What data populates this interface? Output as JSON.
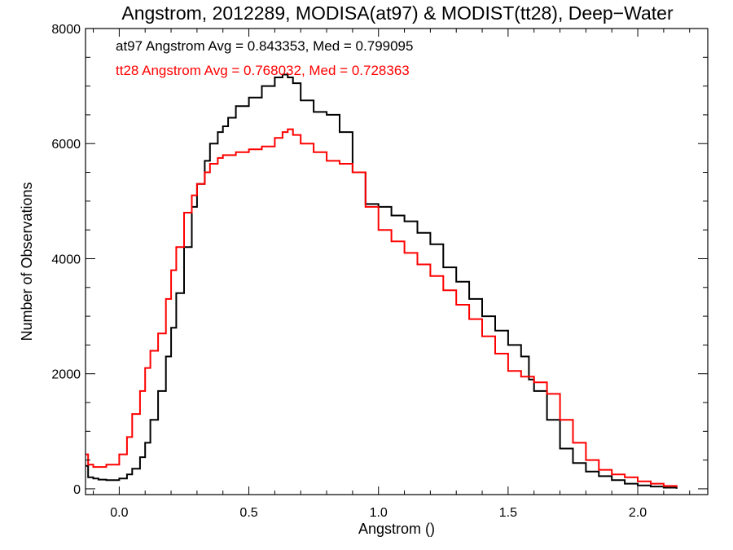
{
  "chart_data": {
    "type": "line",
    "title": "Angstrom, 2012289, MODISA(at97) & MODIST(tt28), Deep−Water",
    "xlabel": "Angstrom ()",
    "ylabel": "Number of Observations",
    "xlim": [
      -0.13,
      2.27
    ],
    "ylim": [
      -100,
      8000
    ],
    "xticks": [
      "0.0",
      "0.5",
      "1.0",
      "1.5",
      "2.0"
    ],
    "yticks": [
      "0",
      "2000",
      "4000",
      "6000",
      "8000"
    ],
    "grid": false,
    "legend": "top-left",
    "annotations": [
      {
        "text": "at97 Angstrom Avg = 0.843353, Med = 0.799095",
        "color": "#000000"
      },
      {
        "text": "tt28 Angstrom Avg = 0.768032, Med = 0.728363",
        "color": "#ff0000"
      }
    ],
    "series": [
      {
        "color": "#000000",
        "x": [
          -0.13,
          -0.12,
          -0.1,
          -0.08,
          -0.05,
          0.0,
          0.03,
          0.05,
          0.08,
          0.1,
          0.12,
          0.15,
          0.18,
          0.2,
          0.22,
          0.25,
          0.28,
          0.3,
          0.33,
          0.35,
          0.38,
          0.4,
          0.42,
          0.45,
          0.5,
          0.55,
          0.6,
          0.63,
          0.65,
          0.67,
          0.7,
          0.75,
          0.8,
          0.85,
          0.9,
          0.95,
          1.0,
          1.05,
          1.1,
          1.15,
          1.2,
          1.25,
          1.3,
          1.35,
          1.4,
          1.45,
          1.5,
          1.55,
          1.58,
          1.6,
          1.65,
          1.7,
          1.75,
          1.8,
          1.85,
          1.9,
          1.95,
          2.0,
          2.05,
          2.1,
          2.15
        ],
        "y": [
          400,
          200,
          180,
          160,
          150,
          180,
          250,
          350,
          550,
          800,
          1200,
          1700,
          2300,
          2800,
          3400,
          4200,
          4900,
          5300,
          5700,
          6000,
          6200,
          6300,
          6450,
          6650,
          6800,
          7000,
          7150,
          7200,
          7150,
          7050,
          6750,
          6550,
          6500,
          6200,
          5500,
          4950,
          4900,
          4750,
          4650,
          4450,
          4250,
          3850,
          3600,
          3300,
          3000,
          2750,
          2500,
          2300,
          1900,
          1700,
          1200,
          700,
          450,
          300,
          220,
          150,
          90,
          60,
          40,
          20,
          0
        ]
      },
      {
        "color": "#ff0000",
        "x": [
          -0.13,
          -0.12,
          -0.1,
          -0.05,
          0.0,
          0.03,
          0.05,
          0.08,
          0.1,
          0.12,
          0.15,
          0.18,
          0.2,
          0.22,
          0.25,
          0.28,
          0.3,
          0.33,
          0.35,
          0.38,
          0.4,
          0.45,
          0.5,
          0.55,
          0.6,
          0.63,
          0.65,
          0.67,
          0.7,
          0.75,
          0.8,
          0.85,
          0.9,
          0.95,
          1.0,
          1.05,
          1.1,
          1.15,
          1.2,
          1.25,
          1.3,
          1.35,
          1.4,
          1.45,
          1.5,
          1.55,
          1.6,
          1.65,
          1.7,
          1.75,
          1.8,
          1.85,
          1.9,
          1.95,
          2.0,
          2.05,
          2.1,
          2.15
        ],
        "y": [
          600,
          420,
          380,
          420,
          600,
          900,
          1300,
          1700,
          2100,
          2400,
          2700,
          3300,
          3800,
          4200,
          4800,
          5100,
          5300,
          5500,
          5650,
          5750,
          5800,
          5850,
          5900,
          5950,
          6100,
          6200,
          6250,
          6150,
          6000,
          5850,
          5700,
          5650,
          5500,
          4900,
          4500,
          4300,
          4100,
          3900,
          3700,
          3450,
          3200,
          2950,
          2650,
          2350,
          2050,
          1950,
          1850,
          1650,
          1200,
          800,
          500,
          330,
          250,
          200,
          130,
          90,
          50,
          30
        ]
      }
    ]
  }
}
